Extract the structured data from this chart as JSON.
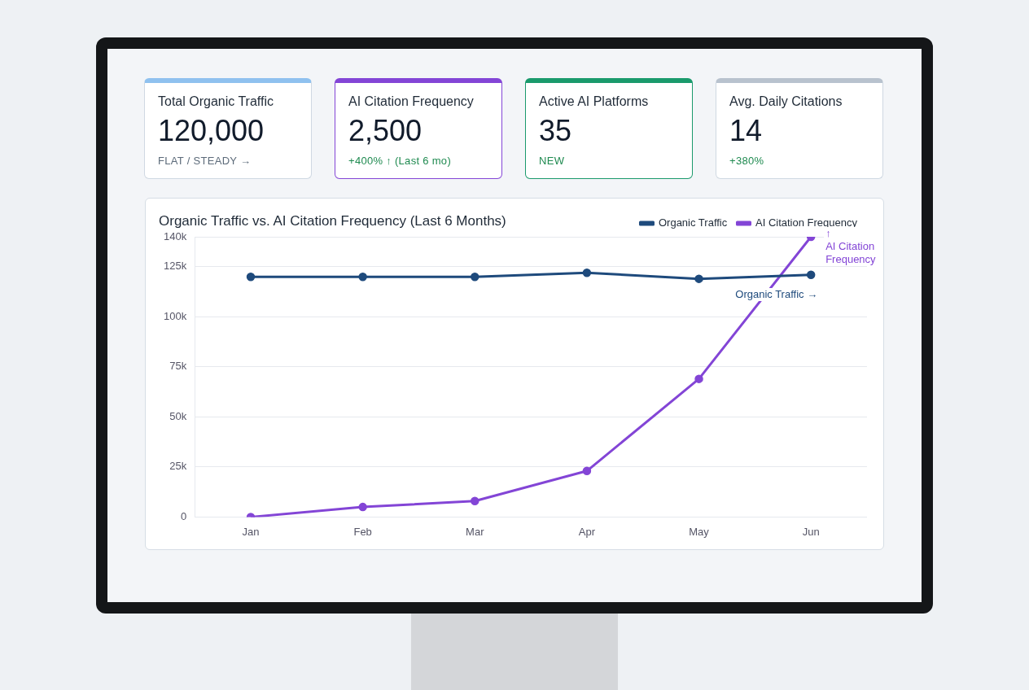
{
  "chart_data": [
    {
      "type": "other",
      "title": "Total Organic Traffic",
      "annotations": [
        "120,000",
        "FLAT / STEADY →"
      ]
    },
    {
      "type": "other",
      "title": "AI Citation Frequency",
      "annotations": [
        "2,500",
        "+400% ↑ (Last 6 mo)"
      ]
    },
    {
      "type": "other",
      "title": "Active AI Platforms",
      "annotations": [
        "35",
        "NEW"
      ]
    },
    {
      "type": "other",
      "title": "Avg. Daily Citations",
      "annotations": [
        "14",
        "+380%"
      ]
    },
    {
      "type": "line",
      "title": "Organic Traffic vs. AI Citation Frequency (Last 6 Months)",
      "categories": [
        "Jan",
        "Feb",
        "Mar",
        "Apr",
        "May",
        "Jun"
      ],
      "series": [
        {
          "name": "Organic Traffic",
          "color": "#1e4a7c",
          "values": [
            120000,
            120000,
            120000,
            122000,
            119000,
            121000
          ]
        },
        {
          "name": "AI Citation Frequency",
          "color": "#8345d6",
          "values": [
            0,
            5000,
            8000,
            23000,
            69000,
            140000
          ]
        }
      ],
      "ylim": [
        0,
        140000
      ],
      "yticks": [
        {
          "value": 0,
          "label": "0"
        },
        {
          "value": 25000,
          "label": "25k"
        },
        {
          "value": 50000,
          "label": "50k"
        },
        {
          "value": 75000,
          "label": "75k"
        },
        {
          "value": 100000,
          "label": "100k"
        },
        {
          "value": 125000,
          "label": "125k"
        },
        {
          "value": 140000,
          "label": "140k"
        }
      ],
      "grid": "y",
      "legend": "top right",
      "marker": "circle",
      "line_style": "solid",
      "annotations": [
        {
          "text": "↑\nAI Citation\nFrequency",
          "x": "Jun",
          "y": 140000
        },
        {
          "text": "Organic Traffic →",
          "x": "Jun",
          "y": 121000
        }
      ]
    }
  ]
}
